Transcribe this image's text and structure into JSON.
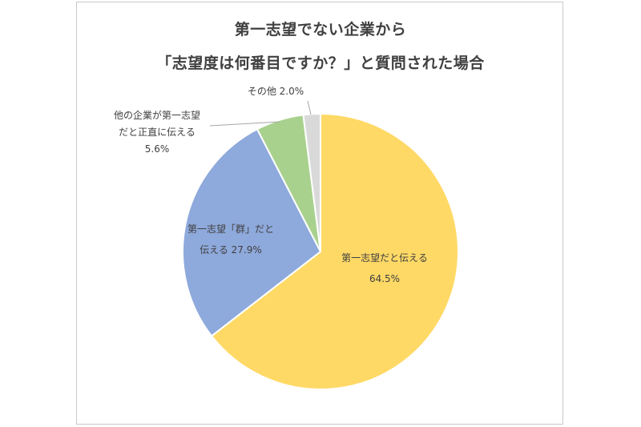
{
  "chart_data": {
    "type": "pie",
    "title": [
      "第一志望でない企業から",
      "「志望度は何番目ですか？」と質問された場合"
    ],
    "slices": [
      {
        "label_lines": [
          "第一志望だと伝える",
          "64.5%"
        ],
        "value": 64.5,
        "color": "#FFD966"
      },
      {
        "label_lines": [
          "第一志望「群」だと",
          "伝える 27.9%"
        ],
        "value": 27.9,
        "color": "#8EA9DB"
      },
      {
        "label_lines": [
          "他の企業が第一志望",
          "だと正直に伝える",
          "5.6%"
        ],
        "value": 5.6,
        "color": "#A9D18E"
      },
      {
        "label_lines": [
          "その他 2.0%"
        ],
        "value": 2.0,
        "color": "#D9D9D9"
      }
    ],
    "legend": false
  }
}
